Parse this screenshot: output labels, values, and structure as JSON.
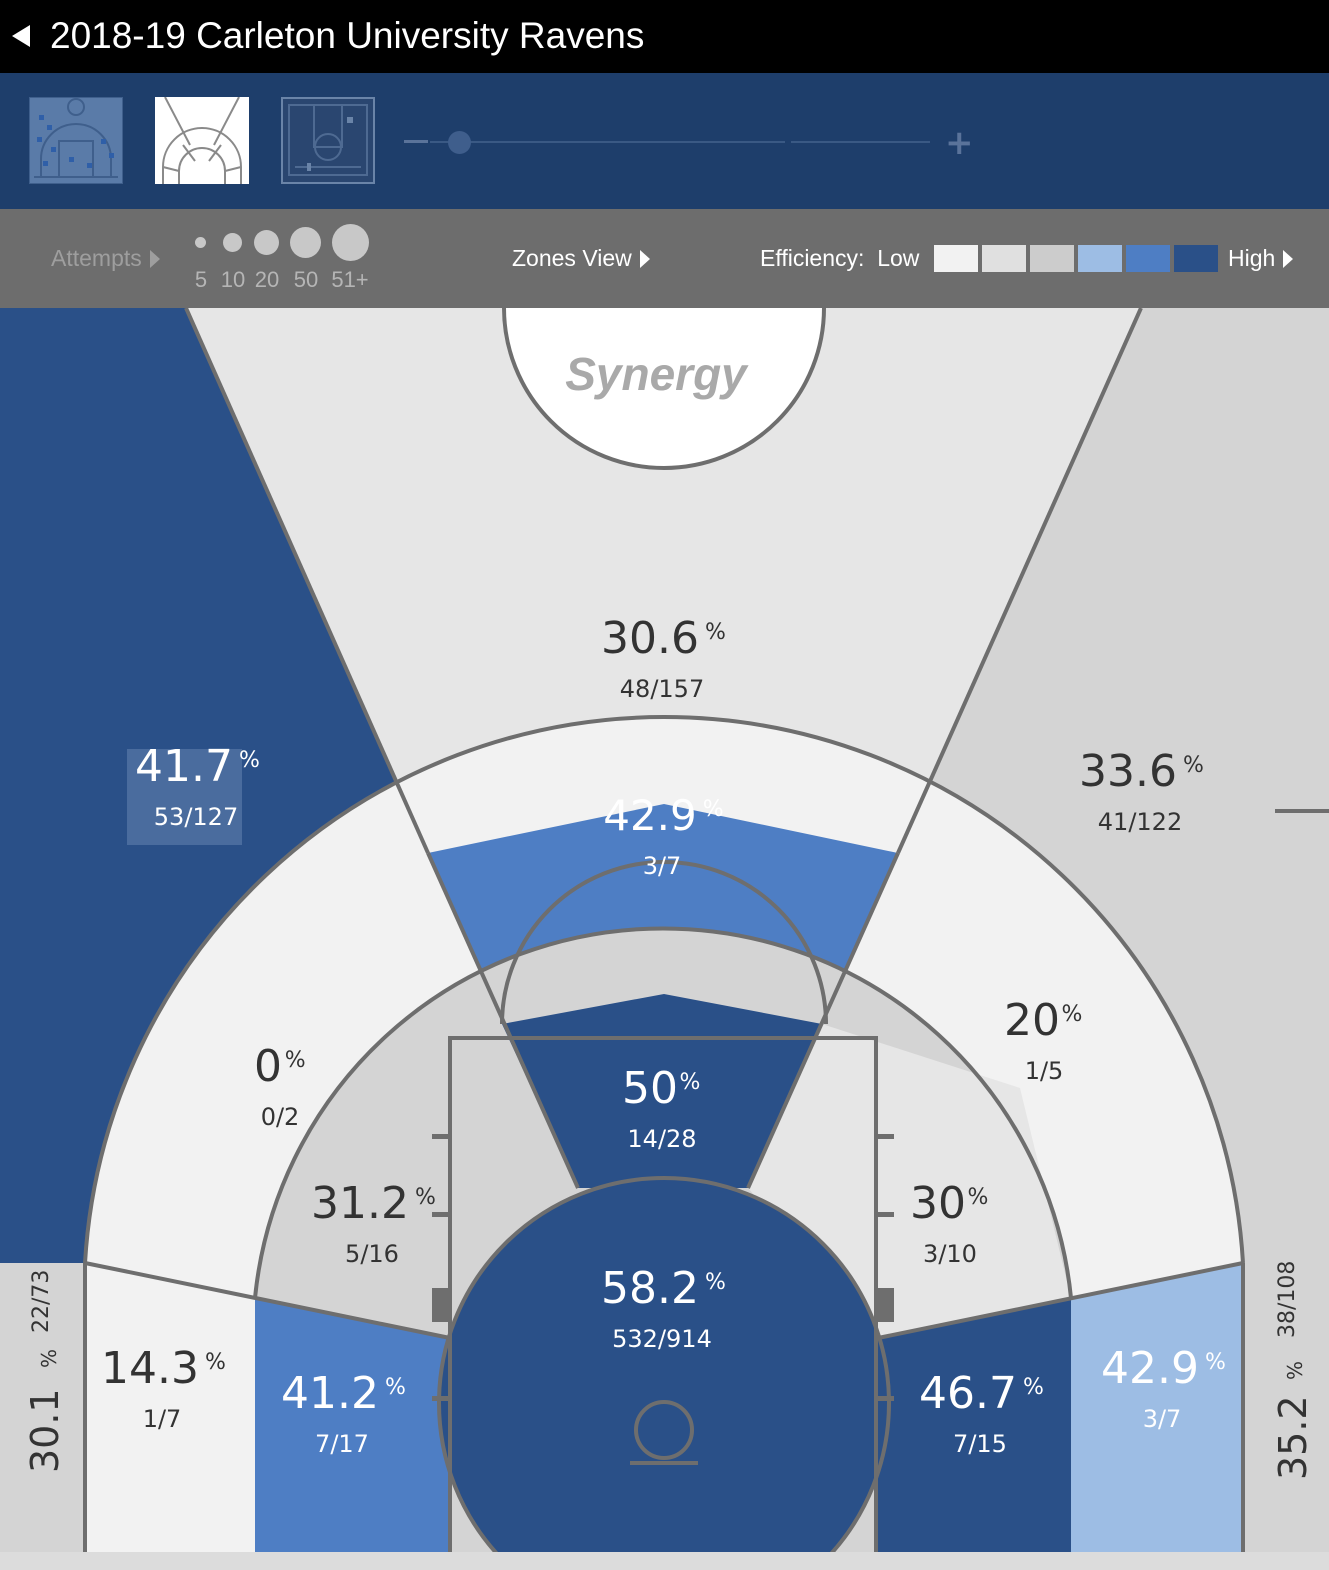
{
  "header": {
    "title": "2018-19 Carleton University Ravens"
  },
  "toolbar": {
    "views": [
      "shot-chart-view-icon",
      "zones-view-icon",
      "court-view-icon"
    ],
    "zoom_minus": "–",
    "zoom_plus": "+"
  },
  "legend": {
    "attempts_label": "Attempts",
    "size_labels": [
      "5",
      "10",
      "20",
      "50",
      "51+"
    ],
    "zones_view_label": "Zones View",
    "efficiency_label": "Efficiency:",
    "low_label": "Low",
    "high_label": "High",
    "efficiency_colors": [
      "#f2f2f2",
      "#e0e0e0",
      "#cccccc",
      "#9dbde4",
      "#4e7ec4",
      "#2a5088"
    ]
  },
  "brand": {
    "logo_text": "Synergy"
  },
  "zones": {
    "left_corner_three": {
      "pct": "30.1",
      "made_att": "22/73"
    },
    "right_corner_three": {
      "pct": "35.2",
      "made_att": "38/108"
    },
    "left_wing_three": {
      "pct": "41.7",
      "made_att": "53/127"
    },
    "top_three": {
      "pct": "30.6",
      "made_att": "48/157"
    },
    "right_wing_three": {
      "pct": "33.6",
      "made_att": "41/122"
    },
    "top_long_two": {
      "pct": "42.9",
      "made_att": "3/7"
    },
    "left_wing_long_two": {
      "pct": "0",
      "made_att": "0/2"
    },
    "right_wing_long_two": {
      "pct": "20",
      "made_att": "1/5"
    },
    "left_baseline_long_two": {
      "pct": "14.3",
      "made_att": "1/7"
    },
    "right_baseline_long_two": {
      "pct": "42.9",
      "made_att": "3/7"
    },
    "left_elbow_mid": {
      "pct": "31.2",
      "made_att": "5/16"
    },
    "right_elbow_mid": {
      "pct": "30",
      "made_att": "3/10"
    },
    "left_baseline_mid": {
      "pct": "41.2",
      "made_att": "7/17"
    },
    "right_baseline_mid": {
      "pct": "46.7",
      "made_att": "7/15"
    },
    "paint_top": {
      "pct": "50",
      "made_att": "14/28"
    },
    "restricted_area": {
      "pct": "58.2",
      "made_att": "532/914"
    },
    "pct_symbol": "%"
  }
}
